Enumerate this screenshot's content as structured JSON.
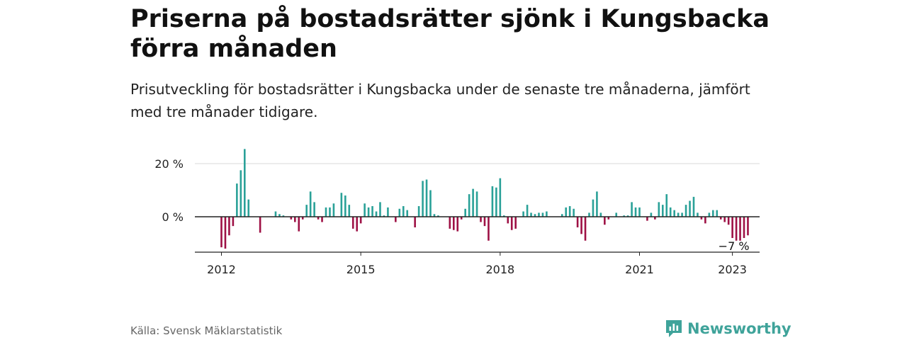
{
  "header": {
    "title": "Priserna på bostadsrätter sjönk i Kungsbacka förra månaden",
    "subtitle": "Prisutveckling för bostadsrätter i Kungsbacka under de senaste tre månaderna, jämfört med tre månader tidigare."
  },
  "footer": {
    "source": "Källa: Svensk Mäklarstatistik",
    "brand": "Newsworthy",
    "brand_icon": "newsworthy-logo-icon"
  },
  "colors": {
    "positive": "#2aa198",
    "negative": "#9e1145",
    "grid": "#d9d9d9",
    "axis": "#222222",
    "brand": "#3fa39a"
  },
  "chart_data": {
    "type": "bar",
    "title": "Priserna på bostadsrätter sjönk i Kungsbacka förra månaden",
    "subtitle": "Prisutveckling för bostadsrätter i Kungsbacka under de senaste tre månaderna, jämfört med tre månader tidigare.",
    "unit": "%",
    "start": "2012-01",
    "x_ticks": [
      {
        "label": "2012",
        "index": 0
      },
      {
        "label": "2015",
        "index": 36
      },
      {
        "label": "2018",
        "index": 72
      },
      {
        "label": "2021",
        "index": 108
      },
      {
        "label": "2023",
        "index": 132
      }
    ],
    "y_ticks": [
      {
        "label": "20 %",
        "value": 20
      },
      {
        "label": "0 %",
        "value": 0
      }
    ],
    "ylim": [
      -13,
      26
    ],
    "grid": true,
    "annotation": {
      "label": "−7 %",
      "index": 132
    },
    "values": [
      -11.5,
      -12,
      -7,
      -3.5,
      12.5,
      17.5,
      25.5,
      6.5,
      0,
      0,
      -6,
      0,
      0,
      0,
      2,
      1,
      0.5,
      0,
      -1,
      -2,
      -5.5,
      -1,
      4.5,
      9.5,
      5.5,
      -1,
      -2,
      3.5,
      3.5,
      5,
      0,
      9,
      8,
      4.5,
      -4.5,
      -5.5,
      -2.5,
      5,
      3.5,
      4,
      2,
      5.5,
      0.5,
      3.5,
      0,
      -2,
      3,
      4,
      2.5,
      0,
      -4,
      4,
      13.5,
      14,
      10,
      1,
      0.5,
      0,
      0,
      -4.5,
      -5,
      -5.5,
      -1,
      3,
      8.5,
      10.5,
      9.5,
      -2,
      -3.5,
      -9,
      11.5,
      11,
      14.5,
      0.5,
      -2.5,
      -5,
      -4.5,
      0,
      2,
      4.5,
      1.5,
      1,
      1.5,
      1.5,
      2,
      0,
      0,
      0,
      1,
      3.5,
      4,
      3,
      -4,
      -6.5,
      -9,
      1.5,
      6.5,
      9.5,
      1.5,
      -3,
      -1,
      0,
      1.5,
      0,
      0.5,
      0.5,
      5.5,
      3.5,
      3.5,
      0,
      -1.5,
      1.5,
      -1,
      5.5,
      4.5,
      8.5,
      3.5,
      2.5,
      1.5,
      1.5,
      4.5,
      6,
      7.5,
      1.5,
      -1,
      -2.5,
      1.5,
      2.5,
      2.5,
      -1,
      -2,
      -3,
      -8,
      -9,
      -9,
      -8,
      -7
    ]
  }
}
